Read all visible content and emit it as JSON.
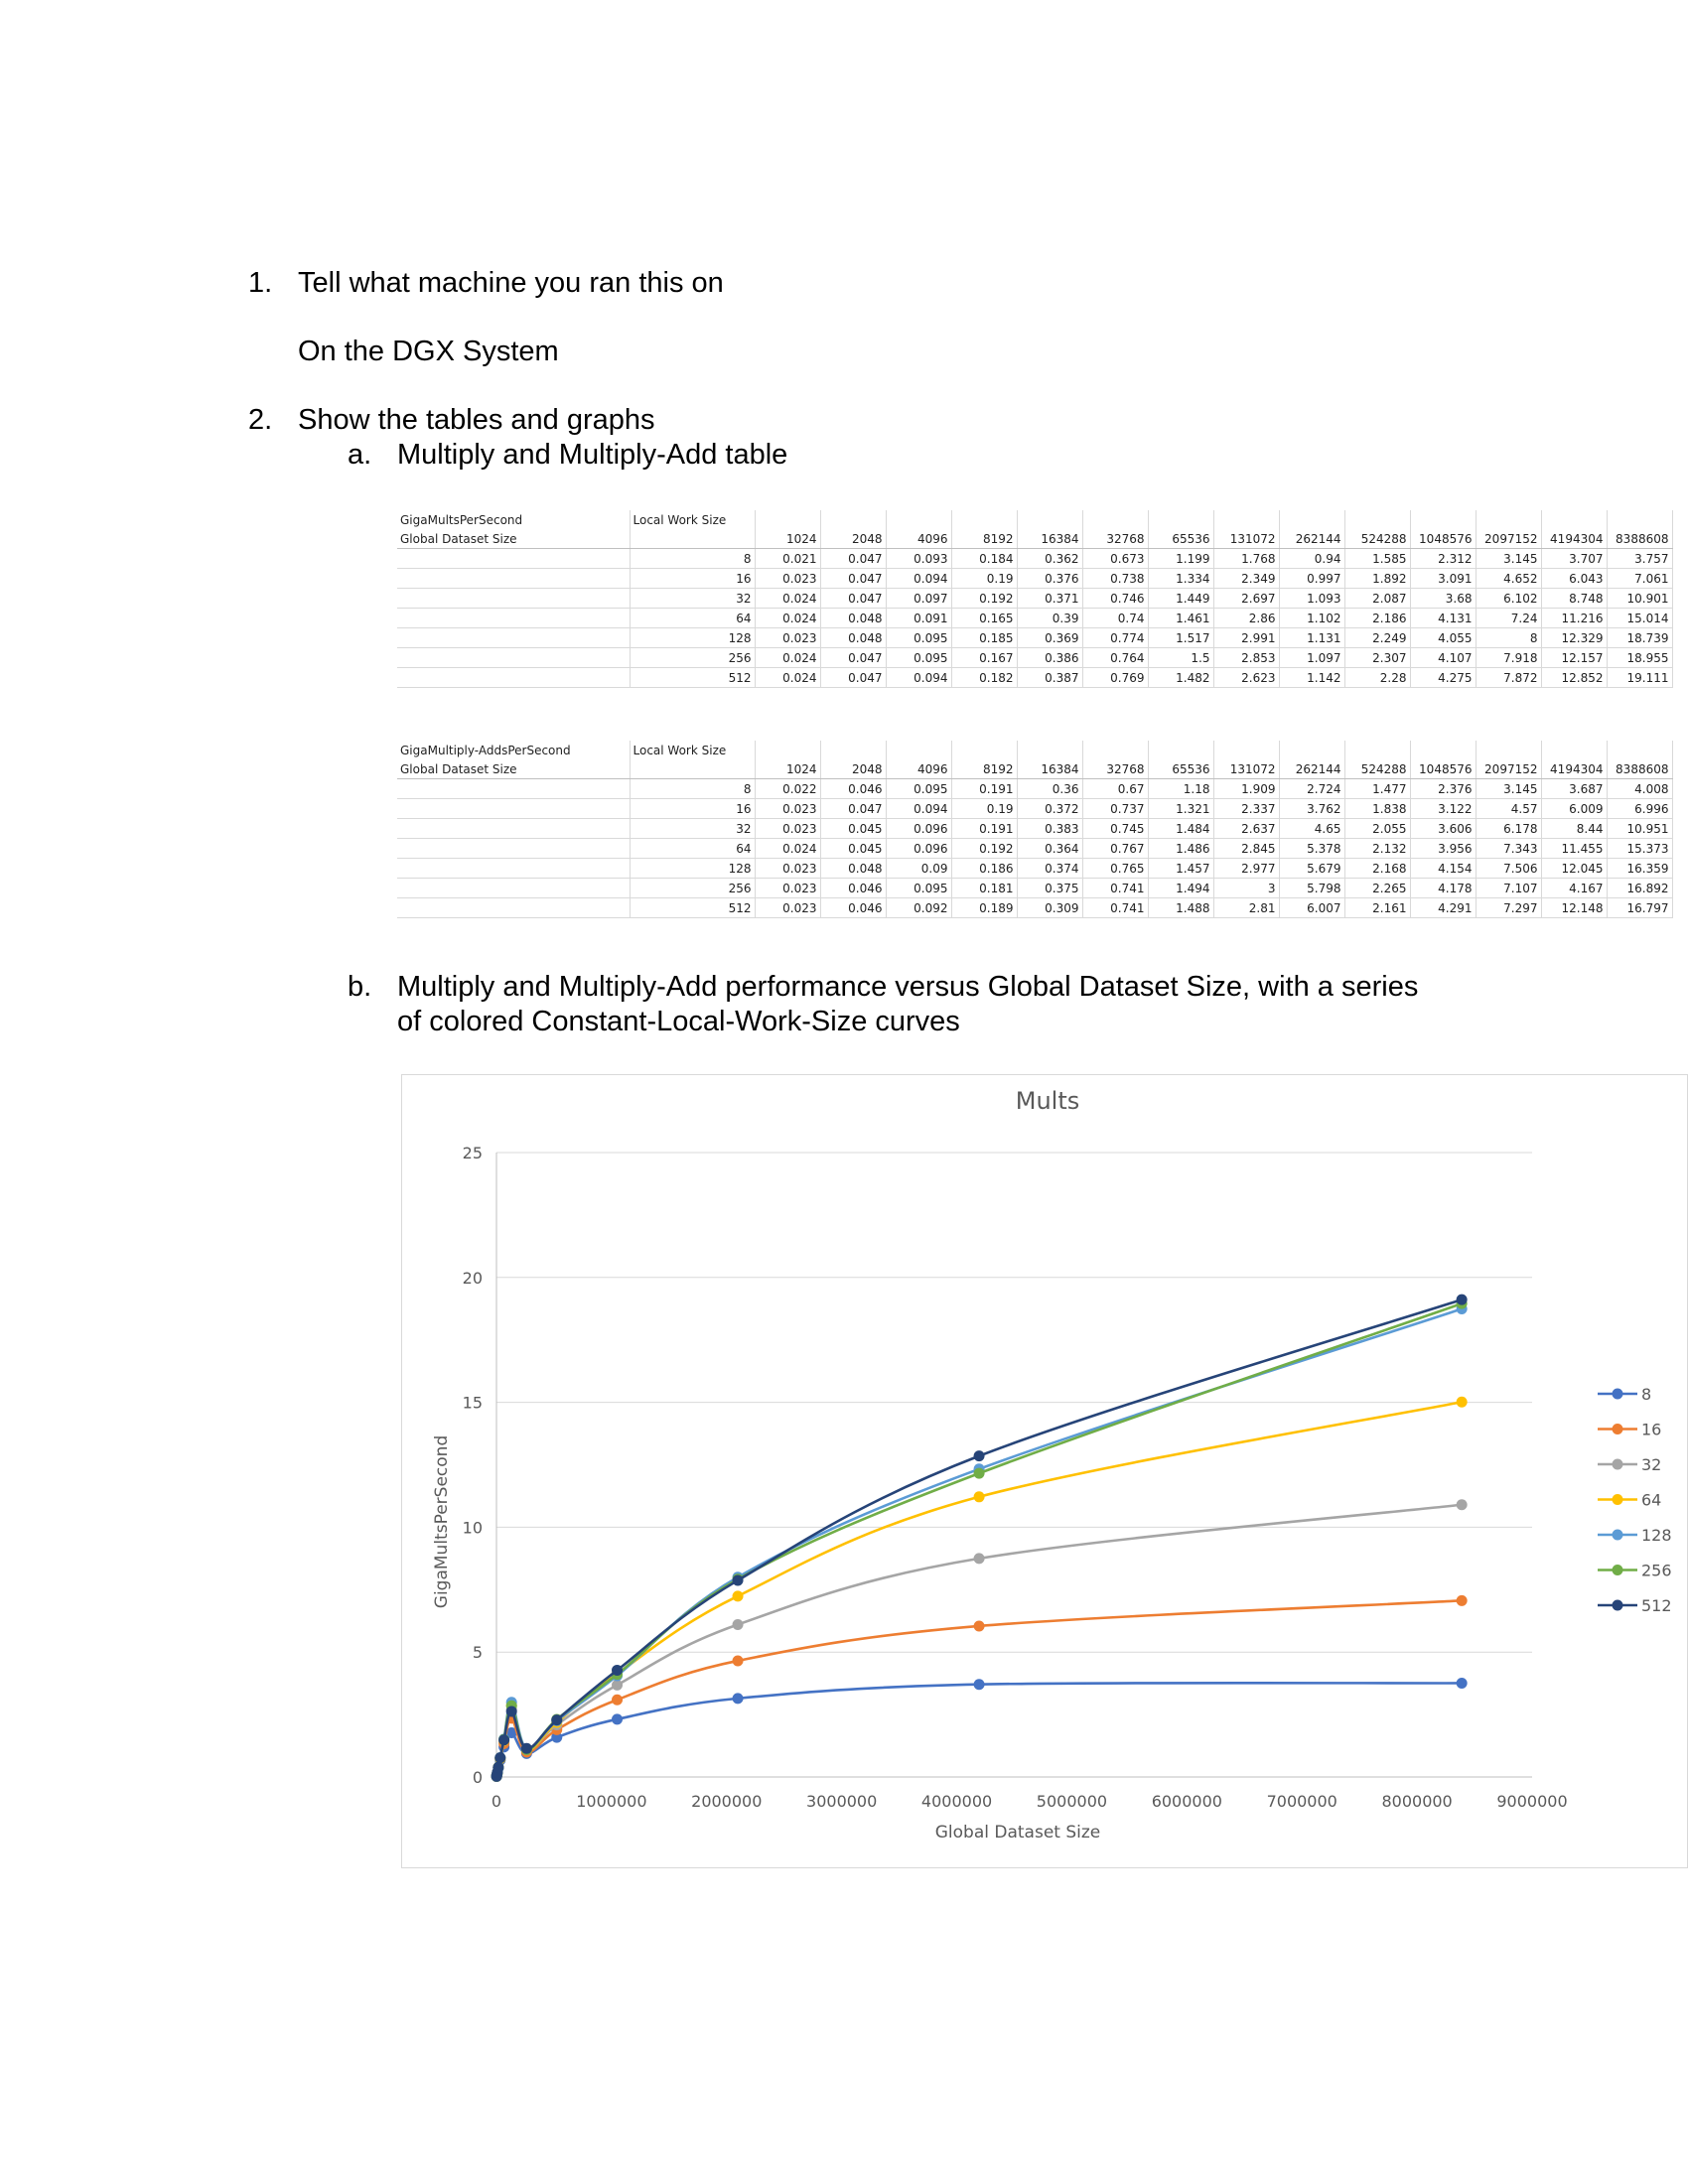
{
  "sections": {
    "q1": {
      "number": "1.",
      "text": "Tell what machine you ran this on"
    },
    "answer": "On the DGX System",
    "q2": {
      "number": "2.",
      "text": "Show the tables and graphs"
    },
    "qa": {
      "letter": "a.",
      "text": "Multiply and Multiply-Add table"
    },
    "qb": {
      "letter": "b.",
      "line1": "Multiply and Multiply-Add performance versus Global Dataset Size, with a series",
      "line2": "of colored Constant-Local-Work-Size curves"
    }
  },
  "table1": {
    "title": "GigaMultsPerSecond",
    "row_header": "Global Dataset Size",
    "col_header": "Local Work Size",
    "columns": [
      "1024",
      "2048",
      "4096",
      "8192",
      "16384",
      "32768",
      "65536",
      "131072",
      "262144",
      "524288",
      "1048576",
      "2097152",
      "4194304",
      "8388608"
    ],
    "rows": [
      {
        "lws": "8",
        "values": [
          "0.021",
          "0.047",
          "0.093",
          "0.184",
          "0.362",
          "0.673",
          "1.199",
          "1.768",
          "0.94",
          "1.585",
          "2.312",
          "3.145",
          "3.707",
          "3.757"
        ]
      },
      {
        "lws": "16",
        "values": [
          "0.023",
          "0.047",
          "0.094",
          "0.19",
          "0.376",
          "0.738",
          "1.334",
          "2.349",
          "0.997",
          "1.892",
          "3.091",
          "4.652",
          "6.043",
          "7.061"
        ]
      },
      {
        "lws": "32",
        "values": [
          "0.024",
          "0.047",
          "0.097",
          "0.192",
          "0.371",
          "0.746",
          "1.449",
          "2.697",
          "1.093",
          "2.087",
          "3.68",
          "6.102",
          "8.748",
          "10.901"
        ]
      },
      {
        "lws": "64",
        "values": [
          "0.024",
          "0.048",
          "0.091",
          "0.165",
          "0.39",
          "0.74",
          "1.461",
          "2.86",
          "1.102",
          "2.186",
          "4.131",
          "7.24",
          "11.216",
          "15.014"
        ]
      },
      {
        "lws": "128",
        "values": [
          "0.023",
          "0.048",
          "0.095",
          "0.185",
          "0.369",
          "0.774",
          "1.517",
          "2.991",
          "1.131",
          "2.249",
          "4.055",
          "8",
          "12.329",
          "18.739"
        ]
      },
      {
        "lws": "256",
        "values": [
          "0.024",
          "0.047",
          "0.095",
          "0.167",
          "0.386",
          "0.764",
          "1.5",
          "2.853",
          "1.097",
          "2.307",
          "4.107",
          "7.918",
          "12.157",
          "18.955"
        ]
      },
      {
        "lws": "512",
        "values": [
          "0.024",
          "0.047",
          "0.094",
          "0.182",
          "0.387",
          "0.769",
          "1.482",
          "2.623",
          "1.142",
          "2.28",
          "4.275",
          "7.872",
          "12.852",
          "19.111"
        ]
      }
    ]
  },
  "table2": {
    "title": "GigaMultiply-AddsPerSecond",
    "row_header": "Global Dataset Size",
    "col_header": "Local Work Size",
    "columns": [
      "1024",
      "2048",
      "4096",
      "8192",
      "16384",
      "32768",
      "65536",
      "131072",
      "262144",
      "524288",
      "1048576",
      "2097152",
      "4194304",
      "8388608"
    ],
    "rows": [
      {
        "lws": "8",
        "values": [
          "0.022",
          "0.046",
          "0.095",
          "0.191",
          "0.36",
          "0.67",
          "1.18",
          "1.909",
          "2.724",
          "1.477",
          "2.376",
          "3.145",
          "3.687",
          "4.008"
        ]
      },
      {
        "lws": "16",
        "values": [
          "0.023",
          "0.047",
          "0.094",
          "0.19",
          "0.372",
          "0.737",
          "1.321",
          "2.337",
          "3.762",
          "1.838",
          "3.122",
          "4.57",
          "6.009",
          "6.996"
        ]
      },
      {
        "lws": "32",
        "values": [
          "0.023",
          "0.045",
          "0.096",
          "0.191",
          "0.383",
          "0.745",
          "1.484",
          "2.637",
          "4.65",
          "2.055",
          "3.606",
          "6.178",
          "8.44",
          "10.951"
        ]
      },
      {
        "lws": "64",
        "values": [
          "0.024",
          "0.045",
          "0.096",
          "0.192",
          "0.364",
          "0.767",
          "1.486",
          "2.845",
          "5.378",
          "2.132",
          "3.956",
          "7.343",
          "11.455",
          "15.373"
        ]
      },
      {
        "lws": "128",
        "values": [
          "0.023",
          "0.048",
          "0.09",
          "0.186",
          "0.374",
          "0.765",
          "1.457",
          "2.977",
          "5.679",
          "2.168",
          "4.154",
          "7.506",
          "12.045",
          "16.359"
        ]
      },
      {
        "lws": "256",
        "values": [
          "0.023",
          "0.046",
          "0.095",
          "0.181",
          "0.375",
          "0.741",
          "1.494",
          "3",
          "5.798",
          "2.265",
          "4.178",
          "7.107",
          "4.167",
          "16.892"
        ]
      },
      {
        "lws": "512",
        "values": [
          "0.023",
          "0.046",
          "0.092",
          "0.189",
          "0.309",
          "0.741",
          "1.488",
          "2.81",
          "6.007",
          "2.161",
          "4.291",
          "7.297",
          "12.148",
          "16.797"
        ]
      }
    ]
  },
  "chart_data": {
    "type": "line",
    "title": "Mults",
    "xlabel": "Global Dataset Size",
    "ylabel": "GigaMultsPerSecond",
    "xlim": [
      0,
      9000000
    ],
    "ylim": [
      0,
      25
    ],
    "x_ticks": [
      "0",
      "1000000",
      "2000000",
      "3000000",
      "4000000",
      "5000000",
      "6000000",
      "7000000",
      "8000000",
      "9000000"
    ],
    "y_ticks": [
      "0",
      "5",
      "10",
      "15",
      "20",
      "25"
    ],
    "grid": true,
    "legend": "right",
    "x": [
      1024,
      2048,
      4096,
      8192,
      16384,
      32768,
      65536,
      131072,
      262144,
      524288,
      1048576,
      2097152,
      4194304,
      8388608
    ],
    "series": [
      {
        "name": "8",
        "color": "#4472C4",
        "values": [
          0.021,
          0.047,
          0.093,
          0.184,
          0.362,
          0.673,
          1.199,
          1.768,
          0.94,
          1.585,
          2.312,
          3.145,
          3.707,
          3.757
        ]
      },
      {
        "name": "16",
        "color": "#ED7D31",
        "values": [
          0.023,
          0.047,
          0.094,
          0.19,
          0.376,
          0.738,
          1.334,
          2.349,
          0.997,
          1.892,
          3.091,
          4.652,
          6.043,
          7.061
        ]
      },
      {
        "name": "32",
        "color": "#A5A5A5",
        "values": [
          0.024,
          0.047,
          0.097,
          0.192,
          0.371,
          0.746,
          1.449,
          2.697,
          1.093,
          2.087,
          3.68,
          6.102,
          8.748,
          10.901
        ]
      },
      {
        "name": "64",
        "color": "#FFC000",
        "values": [
          0.024,
          0.048,
          0.091,
          0.165,
          0.39,
          0.74,
          1.461,
          2.86,
          1.102,
          2.186,
          4.131,
          7.24,
          11.216,
          15.014
        ]
      },
      {
        "name": "128",
        "color": "#5B9BD5",
        "values": [
          0.023,
          0.048,
          0.095,
          0.185,
          0.369,
          0.774,
          1.517,
          2.991,
          1.131,
          2.249,
          4.055,
          8,
          12.329,
          18.739
        ]
      },
      {
        "name": "256",
        "color": "#70AD47",
        "values": [
          0.024,
          0.047,
          0.095,
          0.167,
          0.386,
          0.764,
          1.5,
          2.853,
          1.097,
          2.307,
          4.107,
          7.918,
          12.157,
          18.955
        ]
      },
      {
        "name": "512",
        "color": "#264478",
        "values": [
          0.024,
          0.047,
          0.094,
          0.182,
          0.387,
          0.769,
          1.482,
          2.623,
          1.142,
          2.28,
          4.275,
          7.872,
          12.852,
          19.111
        ]
      }
    ]
  }
}
